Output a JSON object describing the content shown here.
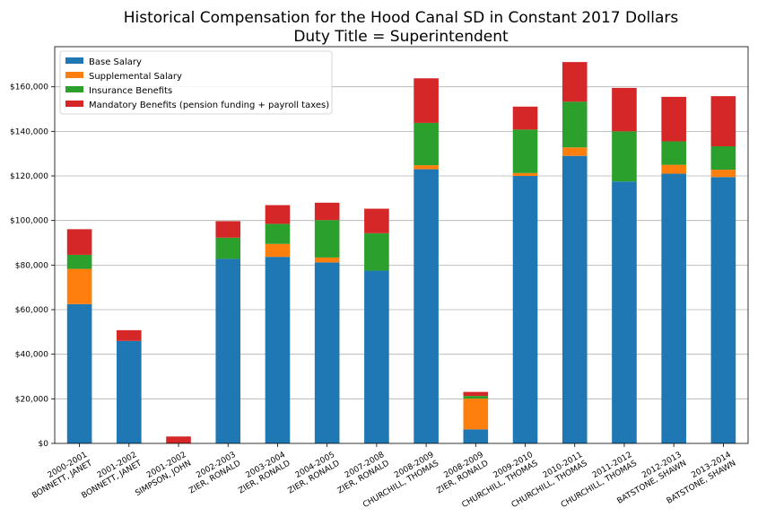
{
  "chart_data": {
    "type": "bar",
    "stacked": true,
    "title": "Historical Compensation for the Hood Canal SD in Constant 2017 Dollars",
    "subtitle": "Duty Title = Superintendent",
    "xlabel": "",
    "ylabel": "",
    "ylim": [
      0,
      178000
    ],
    "yticks": [
      0,
      20000,
      40000,
      60000,
      80000,
      100000,
      120000,
      140000,
      160000
    ],
    "ytick_labels": [
      "$0",
      "$20,000",
      "$40,000",
      "$60,000",
      "$80,000",
      "$100,000",
      "$120,000",
      "$140,000",
      "$160,000"
    ],
    "grid": "y",
    "legend_position": "top-left",
    "categories": [
      [
        "2000-2001",
        "BONNETT, JANET"
      ],
      [
        "2001-2002",
        "BONNETT, JANET"
      ],
      [
        "2001-2002",
        "SIMPSON, JOHN"
      ],
      [
        "2002-2003",
        "ZIER, RONALD"
      ],
      [
        "2003-2004",
        "ZIER, RONALD"
      ],
      [
        "2004-2005",
        "ZIER, RONALD"
      ],
      [
        "2007-2008",
        "ZIER, RONALD"
      ],
      [
        "2008-2009",
        "CHURCHILL, THOMAS"
      ],
      [
        "2008-2009",
        "ZIER, RONALD"
      ],
      [
        "2009-2010",
        "CHURCHILL, THOMAS"
      ],
      [
        "2010-2011",
        "CHURCHILL, THOMAS"
      ],
      [
        "2011-2012",
        "CHURCHILL, THOMAS"
      ],
      [
        "2012-2013",
        "BATSTONE, SHAWN"
      ],
      [
        "2013-2014",
        "BATSTONE, SHAWN"
      ]
    ],
    "series": [
      {
        "name": "Base Salary",
        "color": "#1f77b4",
        "values": [
          62500,
          46000,
          0,
          82800,
          83700,
          81200,
          77500,
          123000,
          6300,
          120000,
          129000,
          117500,
          121000,
          119500
        ]
      },
      {
        "name": "Supplemental Salary",
        "color": "#ff7f0e",
        "values": [
          15800,
          0,
          0,
          0,
          5800,
          2200,
          0,
          1800,
          13800,
          1300,
          3800,
          0,
          4000,
          3300
        ]
      },
      {
        "name": "Insurance Benefits",
        "color": "#2ca02c",
        "values": [
          6300,
          0,
          0,
          9500,
          9000,
          16800,
          16800,
          19000,
          1200,
          19500,
          20500,
          22500,
          10500,
          10500
        ]
      },
      {
        "name": "Mandatory Benefits (pension funding + payroll taxes)",
        "color": "#d62728",
        "values": [
          11500,
          4800,
          3100,
          7400,
          8400,
          7800,
          11000,
          20000,
          1800,
          10300,
          17800,
          19500,
          20000,
          22500
        ]
      }
    ]
  }
}
